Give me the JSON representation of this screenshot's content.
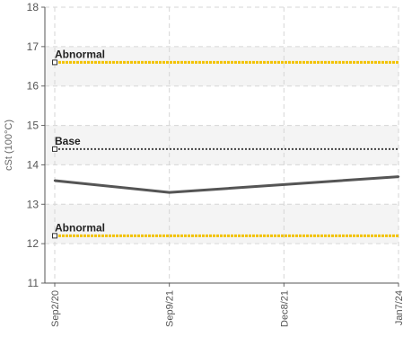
{
  "chart_data": {
    "type": "line",
    "ylabel": "cSt (100°C)",
    "ylim": [
      11,
      18
    ],
    "yticks": [
      11,
      12,
      13,
      14,
      15,
      16,
      17,
      18
    ],
    "categories": [
      "Sep2/20",
      "Sep9/21",
      "Dec8/21",
      "Jan7/24"
    ],
    "series": [
      {
        "values": [
          13.6,
          13.3,
          13.5,
          13.7
        ],
        "color": "#555555"
      }
    ],
    "reference_lines": [
      {
        "label": "Abnormal",
        "value": 16.6,
        "color": "#f2c200",
        "style": "dotted"
      },
      {
        "label": "Base",
        "value": 14.4,
        "color": "#444444",
        "style": "dotted"
      },
      {
        "label": "Abnormal",
        "value": 12.2,
        "color": "#f2c200",
        "style": "dotted"
      }
    ],
    "bands": [
      {
        "from": 16,
        "to": 17,
        "color": "#f4f4f4"
      },
      {
        "from": 14,
        "to": 15,
        "color": "#f4f4f4"
      },
      {
        "from": 12,
        "to": 13,
        "color": "#f4f4f4"
      }
    ],
    "grid": true,
    "legend": "none"
  }
}
